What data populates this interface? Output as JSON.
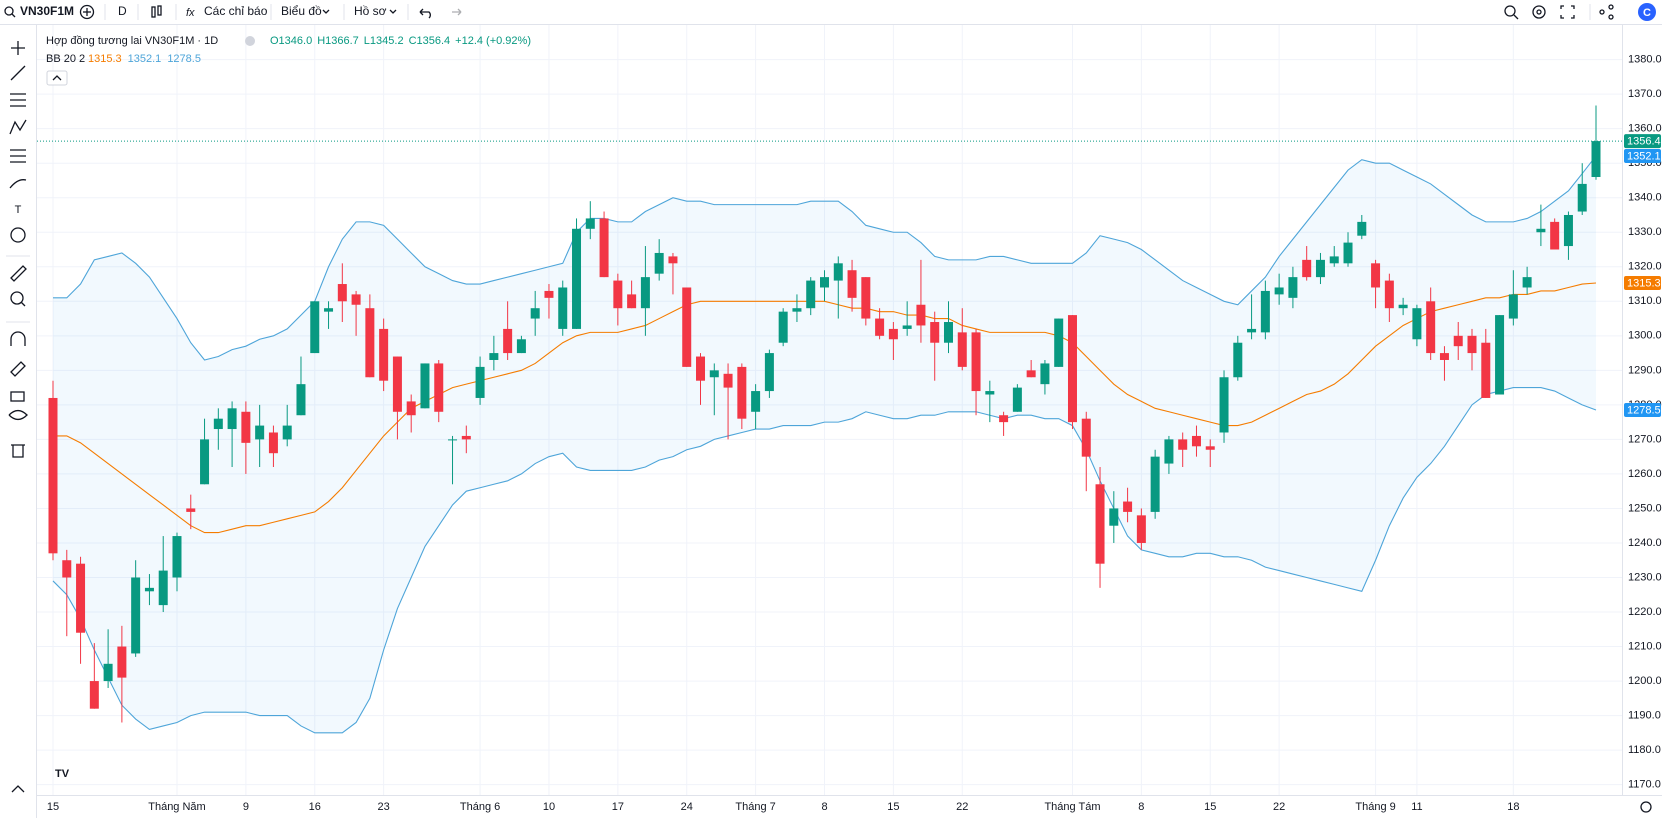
{
  "toolbar": {
    "symbol": "VN30F1M",
    "interval": "D",
    "indicators": "Các chỉ báo",
    "chart_type": "Biểu đồ",
    "profile": "Hồ sơ"
  },
  "chart_data": {
    "type": "candlestick",
    "title": "Hợp đồng tương lai VN30F1M · 1D",
    "quote": [
      "O1346.0",
      "H1366.7",
      "L1345.2",
      "C1356.4",
      "+12.4 (+0.92%)"
    ],
    "up_color": "#089981",
    "down_color": "#f23645",
    "categories": [
      "15",
      null,
      null,
      null,
      null,
      null,
      null,
      null,
      null,
      "Tháng Năm",
      null,
      null,
      null,
      null,
      "9",
      null,
      null,
      null,
      null,
      "16",
      null,
      null,
      null,
      null,
      "23",
      null,
      null,
      null,
      null,
      null,
      null,
      "Tháng 6",
      null,
      null,
      null,
      null,
      "10",
      null,
      null,
      null,
      null,
      "17",
      null,
      null,
      null,
      null,
      "24",
      null,
      null,
      null,
      null,
      "Tháng 7",
      null,
      null,
      null,
      null,
      "8",
      null,
      null,
      null,
      null,
      "15",
      null,
      null,
      null,
      null,
      "22",
      null,
      null,
      null,
      null,
      null,
      null,
      null,
      "Tháng Tám",
      null,
      null,
      null,
      null,
      "8",
      null,
      null,
      null,
      null,
      "15",
      null,
      null,
      null,
      null,
      "22",
      null,
      null,
      null,
      null,
      null,
      null,
      "Tháng 9",
      null,
      null,
      "11",
      null,
      null,
      null,
      null,
      null,
      null,
      "18",
      null,
      null,
      null,
      null,
      null,
      null
    ],
    "open": [
      1282,
      1235,
      1234,
      1200,
      1200,
      1210,
      1208,
      1226,
      1222,
      1230,
      1250,
      1257,
      1273,
      1273,
      1278,
      1270,
      1272,
      1270,
      1277,
      1295,
      1307,
      1315,
      1312,
      1308,
      1302,
      1294,
      1281,
      1279,
      1292,
      1270,
      1271,
      1282,
      1293,
      1302,
      1295,
      1305,
      1313,
      1302,
      1302,
      1331,
      1334,
      1316,
      1312,
      1308,
      1318,
      1323,
      1314,
      1294,
      1288,
      1289,
      1291,
      1278,
      1284,
      1298,
      1307,
      1308,
      1314,
      1316,
      1319,
      1317,
      1305,
      1302,
      1302,
      1309,
      1304,
      1298,
      1301,
      1301,
      1283,
      1277,
      1278,
      1290,
      1286,
      1291,
      1306,
      1276,
      1257,
      1245,
      1252,
      1248,
      1249,
      1263,
      1270,
      1271,
      1268,
      1272,
      1288,
      1301,
      1301,
      1312,
      1311,
      1322,
      1317,
      1321,
      1321,
      1329,
      1321,
      1316,
      1308,
      1299,
      1310,
      1295,
      1300,
      1300,
      1298,
      1283,
      1305,
      1314,
      1330,
      1333,
      1326,
      1336,
      1346
    ],
    "high": [
      1287,
      1238,
      1236,
      1211,
      1215,
      1216,
      1235,
      1231,
      1242,
      1243,
      1254,
      1276,
      1279,
      1281,
      1281,
      1280,
      1274,
      1280,
      1294,
      1310,
      1310,
      1321,
      1313,
      1312,
      1305,
      1294,
      1283,
      1292,
      1293,
      1271,
      1274,
      1294,
      1300,
      1310,
      1300,
      1313,
      1315,
      1316,
      1334,
      1339,
      1336,
      1318,
      1316,
      1326,
      1328,
      1324,
      1314,
      1295,
      1292,
      1292,
      1292,
      1286,
      1296,
      1308,
      1312,
      1317,
      1319,
      1323,
      1322,
      1317,
      1308,
      1304,
      1310,
      1322,
      1307,
      1310,
      1308,
      1302,
      1287,
      1278,
      1286,
      1293,
      1293,
      1305,
      1306,
      1278,
      1262,
      1255,
      1256,
      1250,
      1267,
      1271,
      1272,
      1274,
      1270,
      1290,
      1300,
      1312,
      1316,
      1318,
      1320,
      1326,
      1324,
      1326,
      1330,
      1335,
      1322,
      1318,
      1311,
      1309,
      1314,
      1297,
      1304,
      1302,
      1302,
      1306,
      1319,
      1320,
      1338,
      1334,
      1336,
      1350,
      1366.7
    ],
    "low": [
      1235,
      1213,
      1205,
      1192,
      1198,
      1188,
      1207,
      1222,
      1220,
      1226,
      1244,
      1257,
      1267,
      1262,
      1260,
      1262,
      1262,
      1268,
      1277,
      1295,
      1302,
      1304,
      1300,
      1288,
      1284,
      1270,
      1272,
      1279,
      1275,
      1257,
      1266,
      1280,
      1290,
      1293,
      1295,
      1300,
      1305,
      1300,
      1302,
      1328,
      1317,
      1303,
      1308,
      1300,
      1316,
      1312,
      1291,
      1280,
      1277,
      1270,
      1273,
      1273,
      1282,
      1297,
      1304,
      1306,
      1310,
      1305,
      1307,
      1303,
      1299,
      1293,
      1300,
      1298,
      1287,
      1295,
      1290,
      1277,
      1275,
      1271,
      1278,
      1288,
      1283,
      1291,
      1273,
      1255,
      1227,
      1240,
      1246,
      1238,
      1247,
      1260,
      1262,
      1265,
      1262,
      1269,
      1287,
      1299,
      1299,
      1309,
      1308,
      1316,
      1315,
      1320,
      1320,
      1328,
      1308,
      1304,
      1306,
      1297,
      1293,
      1287,
      1293,
      1290,
      1282,
      1283,
      1303,
      1312,
      1326,
      1325,
      1322,
      1335,
      1345.2
    ],
    "close": [
      1237,
      1230,
      1214,
      1192,
      1205,
      1201,
      1230,
      1227,
      1232,
      1242,
      1249,
      1270,
      1276,
      1279,
      1269,
      1274,
      1266,
      1274,
      1286,
      1310,
      1308,
      1310,
      1309,
      1288,
      1287,
      1278,
      1277,
      1292,
      1278,
      1270,
      1270,
      1291,
      1295,
      1295,
      1299,
      1308,
      1311,
      1314,
      1331,
      1334,
      1317,
      1308,
      1308,
      1317,
      1324,
      1321,
      1291,
      1287,
      1290,
      1285,
      1276,
      1284,
      1295,
      1307,
      1308,
      1316,
      1317,
      1321,
      1311,
      1305,
      1300,
      1299,
      1303,
      1303,
      1298,
      1304,
      1291,
      1284,
      1284,
      1275,
      1285,
      1288,
      1292,
      1305,
      1275,
      1265,
      1234,
      1250,
      1249,
      1240,
      1265,
      1270,
      1267,
      1268,
      1267,
      1288,
      1298,
      1302,
      1313,
      1314,
      1317,
      1317,
      1322,
      1323,
      1327,
      1333,
      1314,
      1308,
      1309,
      1308,
      1295,
      1293,
      1297,
      1295,
      1282,
      1306,
      1312,
      1317,
      1331,
      1325,
      1335,
      1344,
      1356.4
    ],
    "indicator": {
      "name": "BB 20 2",
      "basis": {
        "color": "#f57c00",
        "values": [
          1271,
          1271,
          1269,
          1266,
          1263,
          1260,
          1257,
          1254,
          1251,
          1248,
          1245,
          1243,
          1243,
          1244,
          1245,
          1245,
          1246,
          1247,
          1248,
          1249,
          1252,
          1256,
          1261,
          1266,
          1271,
          1275,
          1279,
          1281,
          1283,
          1285,
          1286,
          1287,
          1288,
          1289,
          1290,
          1292,
          1295,
          1298,
          1300,
          1301,
          1301,
          1301,
          1302,
          1303,
          1305,
          1307,
          1309,
          1310,
          1310,
          1310,
          1310,
          1310,
          1310,
          1310,
          1310,
          1310,
          1310,
          1309,
          1308,
          1308,
          1307,
          1307,
          1306,
          1306,
          1305,
          1305,
          1303,
          1302,
          1301,
          1301,
          1301,
          1301,
          1301,
          1300,
          1298,
          1294,
          1290,
          1286,
          1283,
          1281,
          1279,
          1278,
          1277,
          1276,
          1275,
          1274,
          1274,
          1275,
          1277,
          1279,
          1281,
          1283,
          1284,
          1286,
          1289,
          1293,
          1297,
          1300,
          1303,
          1305,
          1307,
          1308,
          1309,
          1310,
          1311,
          1311,
          1312,
          1312,
          1313,
          1313,
          1314,
          1315,
          1315.3
        ]
      },
      "upper": {
        "color": "#4ea5d9",
        "values": [
          1311,
          1311,
          1315,
          1322,
          1323,
          1324,
          1321,
          1317,
          1311,
          1305,
          1298,
          1293,
          1294,
          1296,
          1297,
          1299,
          1300,
          1302,
          1306,
          1310,
          1320,
          1328,
          1333,
          1333,
          1332,
          1328,
          1324,
          1320,
          1318,
          1316,
          1315,
          1315,
          1316,
          1317,
          1318,
          1319,
          1320,
          1321,
          1330,
          1334,
          1334,
          1333,
          1333,
          1336,
          1338,
          1340,
          1339,
          1339,
          1338,
          1338,
          1338,
          1338,
          1338,
          1338,
          1338,
          1339,
          1339,
          1339,
          1336,
          1332,
          1331,
          1330,
          1330,
          1327,
          1323,
          1322,
          1322,
          1322,
          1323,
          1323,
          1322,
          1321,
          1321,
          1321,
          1321,
          1324,
          1329,
          1328,
          1327,
          1325,
          1322,
          1319,
          1316,
          1314,
          1312,
          1310,
          1309,
          1313,
          1317,
          1323,
          1328,
          1333,
          1338,
          1343,
          1348,
          1351,
          1350,
          1350,
          1348,
          1346,
          1344,
          1341,
          1338,
          1335,
          1333,
          1333,
          1333,
          1334,
          1336,
          1339,
          1342,
          1347,
          1352.1
        ]
      },
      "lower": {
        "color": "#4ea5d9",
        "values": [
          1229,
          1225,
          1218,
          1209,
          1201,
          1193,
          1189,
          1186,
          1187,
          1188,
          1190,
          1191,
          1191,
          1191,
          1191,
          1190,
          1190,
          1190,
          1187,
          1185,
          1185,
          1185,
          1188,
          1195,
          1209,
          1221,
          1230,
          1239,
          1245,
          1251,
          1255,
          1256,
          1257,
          1258,
          1260,
          1263,
          1265,
          1266,
          1262,
          1261,
          1261,
          1261,
          1261,
          1262,
          1264,
          1265,
          1267,
          1268,
          1270,
          1271,
          1272,
          1273,
          1273,
          1274,
          1274,
          1274,
          1275,
          1275,
          1276,
          1278,
          1277,
          1276,
          1276,
          1277,
          1277,
          1278,
          1278,
          1278,
          1277,
          1276,
          1277,
          1277,
          1276,
          1276,
          1274,
          1267,
          1258,
          1250,
          1242,
          1238,
          1237,
          1236,
          1236,
          1237,
          1237,
          1236,
          1236,
          1235,
          1233,
          1232,
          1231,
          1230,
          1229,
          1228,
          1227,
          1226,
          1235,
          1245,
          1253,
          1259,
          1263,
          1268,
          1274,
          1280,
          1283,
          1284,
          1285,
          1285,
          1285,
          1284,
          1282,
          1280,
          1278.5
        ]
      },
      "fill": "rgba(33,150,243,0.06)"
    },
    "ylim": [
      1167,
      1388
    ],
    "yticks": [
      {
        "value": 1170,
        "label": "1170.0"
      },
      {
        "value": 1180,
        "label": "1180.0"
      },
      {
        "value": 1190,
        "label": "1190.0"
      },
      {
        "value": 1200,
        "label": "1200.0"
      },
      {
        "value": 1210,
        "label": "1210.0"
      },
      {
        "value": 1220,
        "label": "1220.0"
      },
      {
        "value": 1230,
        "label": "1230.0"
      },
      {
        "value": 1240,
        "label": "1240.0"
      },
      {
        "value": 1250,
        "label": "1250.0"
      },
      {
        "value": 1260,
        "label": "1260.0"
      },
      {
        "value": 1270,
        "label": "1270.0"
      },
      {
        "value": 1280,
        "label": "1280.0"
      },
      {
        "value": 1290,
        "label": "1290.0"
      },
      {
        "value": 1300,
        "label": "1300.0"
      },
      {
        "value": 1310,
        "label": "1310.0"
      },
      {
        "value": 1320,
        "label": "1320.0"
      },
      {
        "value": 1330,
        "label": "1330.0"
      },
      {
        "value": 1340,
        "label": "1340.0"
      },
      {
        "value": 1350,
        "label": "1350.0"
      },
      {
        "value": 1360,
        "label": "1360.0"
      },
      {
        "value": 1370,
        "label": "1370.0"
      },
      {
        "value": 1380,
        "label": "1380.0"
      }
    ],
    "grid": true
  }
}
